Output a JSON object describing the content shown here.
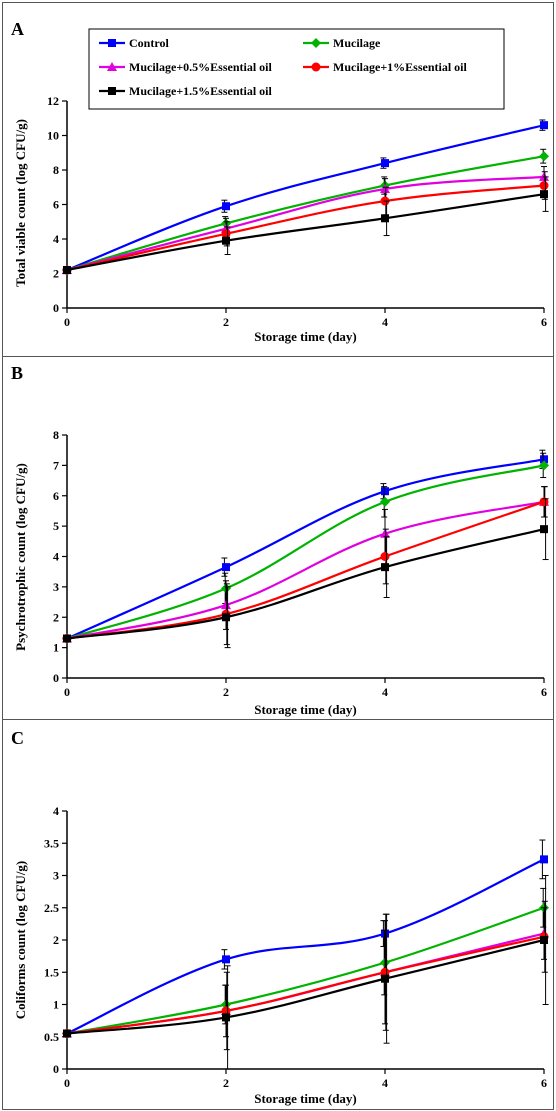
{
  "chart_data": [
    {
      "panel_label": "A",
      "type": "line",
      "xlabel": "Storage time (day)",
      "ylabel": "Total viable count (log CFU/g)",
      "x": [
        0,
        2,
        4,
        6
      ],
      "xticks": [
        "0",
        "2",
        "4",
        "6"
      ],
      "ylim": [
        0,
        12
      ],
      "yticks": [
        "0",
        "2",
        "4",
        "6",
        "8",
        "10",
        "12"
      ],
      "grid": false,
      "legend_position": "top",
      "series": [
        {
          "name": "Control",
          "color": "#0000ff",
          "marker": "square",
          "values": [
            2.2,
            5.9,
            8.4,
            10.6
          ],
          "err": [
            0,
            0.35,
            0.3,
            0.3
          ]
        },
        {
          "name": "Mucilage",
          "color": "#00b300",
          "marker": "diamond",
          "values": [
            2.2,
            4.9,
            7.1,
            8.8
          ],
          "err": [
            0,
            0.4,
            0.5,
            0.4
          ]
        },
        {
          "name": "Mucilage+0.5%Essential oil",
          "color": "#e000e0",
          "marker": "triangle",
          "values": [
            2.2,
            4.6,
            6.9,
            7.6
          ],
          "err": [
            0,
            0.6,
            0.6,
            0.6
          ]
        },
        {
          "name": "Mucilage+1%Essential oil",
          "color": "#ff0000",
          "marker": "circle",
          "values": [
            2.2,
            4.3,
            6.2,
            7.1
          ],
          "err": [
            0,
            0.7,
            0.8,
            0.8
          ]
        },
        {
          "name": "Mucilage+1.5%Essential oil",
          "color": "#000000",
          "marker": "square",
          "values": [
            2.2,
            3.9,
            5.2,
            6.6
          ],
          "err": [
            0,
            0.8,
            1.0,
            1.0
          ]
        }
      ]
    },
    {
      "panel_label": "B",
      "type": "line",
      "xlabel": "Storage time (day)",
      "ylabel": "Psychrotrophic count (log CFU/g)",
      "x": [
        0,
        2,
        4,
        6
      ],
      "xticks": [
        "0",
        "2",
        "4",
        "6"
      ],
      "ylim": [
        0,
        8
      ],
      "yticks": [
        "0",
        "1",
        "2",
        "3",
        "4",
        "5",
        "6",
        "7",
        "8"
      ],
      "grid": false,
      "series": [
        {
          "name": "Control",
          "color": "#0000ff",
          "marker": "square",
          "values": [
            1.3,
            3.65,
            6.15,
            7.2
          ],
          "err": [
            0,
            0.3,
            0.25,
            0.3
          ]
        },
        {
          "name": "Mucilage",
          "color": "#00b300",
          "marker": "diamond",
          "values": [
            1.3,
            2.95,
            5.8,
            7.0
          ],
          "err": [
            0,
            0.5,
            0.5,
            0.4
          ]
        },
        {
          "name": "Mucilage+0.5%Essential oil",
          "color": "#e000e0",
          "marker": "triangle",
          "values": [
            1.3,
            2.4,
            4.75,
            5.8
          ],
          "err": [
            0,
            0.8,
            0.8,
            0.5
          ]
        },
        {
          "name": "Mucilage+1%Essential oil",
          "color": "#ff0000",
          "marker": "circle",
          "values": [
            1.3,
            2.1,
            4.0,
            5.8
          ],
          "err": [
            0,
            1.0,
            0.9,
            0.5
          ]
        },
        {
          "name": "Mucilage+1.5%Essential oil",
          "color": "#000000",
          "marker": "square",
          "values": [
            1.3,
            2.0,
            3.65,
            4.9
          ],
          "err": [
            0,
            1.0,
            1.0,
            1.0
          ]
        }
      ]
    },
    {
      "panel_label": "C",
      "type": "line",
      "xlabel": "Storage time (day)",
      "ylabel": "Coliforms count (log CFU/g)",
      "x": [
        0,
        2,
        4,
        6
      ],
      "xticks": [
        "0",
        "2",
        "4",
        "6"
      ],
      "ylim": [
        0,
        4
      ],
      "yticks": [
        "0",
        "0.5",
        "1",
        "1.5",
        "2",
        "2.5",
        "3",
        "3.5",
        "4"
      ],
      "grid": false,
      "series": [
        {
          "name": "Control",
          "color": "#0000ff",
          "marker": "square",
          "values": [
            0.55,
            1.7,
            2.1,
            3.25
          ],
          "err": [
            0,
            0.15,
            0.2,
            0.3
          ]
        },
        {
          "name": "Mucilage",
          "color": "#00b300",
          "marker": "diamond",
          "values": [
            0.55,
            1.0,
            1.65,
            2.5
          ],
          "err": [
            0,
            0.3,
            0.5,
            0.3
          ]
        },
        {
          "name": "Mucilage+0.5%Essential oil",
          "color": "#e000e0",
          "marker": "triangle",
          "values": [
            0.55,
            0.9,
            1.5,
            2.1
          ],
          "err": [
            0,
            0.4,
            0.8,
            0.4
          ]
        },
        {
          "name": "Mucilage+1%Essential oil",
          "color": "#ff0000",
          "marker": "circle",
          "values": [
            0.55,
            0.9,
            1.5,
            2.05
          ],
          "err": [
            0,
            0.6,
            0.9,
            0.55
          ]
        },
        {
          "name": "Mucilage+1.5%Essential oil",
          "color": "#000000",
          "marker": "square",
          "values": [
            0.55,
            0.8,
            1.4,
            2.0
          ],
          "err": [
            0,
            0.8,
            1.0,
            1.0
          ]
        }
      ]
    }
  ]
}
